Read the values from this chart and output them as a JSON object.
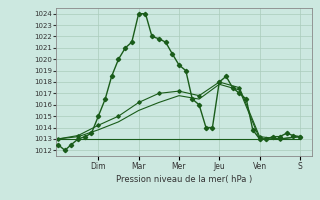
{
  "xlabel": "Pression niveau de la mer( hPa )",
  "bg_color": "#cce8e0",
  "grid_color": "#aaccbb",
  "line_color": "#1a5c1a",
  "ylim": [
    1011.5,
    1024.5
  ],
  "yticks": [
    1012,
    1013,
    1014,
    1015,
    1016,
    1017,
    1018,
    1019,
    1020,
    1021,
    1022,
    1023,
    1024
  ],
  "day_labels": [
    "Dim",
    "Mar",
    "Mer",
    "Jeu",
    "Ven",
    "S"
  ],
  "day_positions": [
    1.0,
    2.0,
    3.0,
    4.0,
    5.0,
    6.0
  ],
  "xlim": [
    -0.05,
    6.3
  ],
  "series1_x": [
    0.0,
    0.17,
    0.33,
    0.5,
    0.67,
    0.83,
    1.0,
    1.17,
    1.33,
    1.5,
    1.67,
    1.83,
    2.0,
    2.17,
    2.33,
    2.5,
    2.67,
    2.83,
    3.0,
    3.17,
    3.33,
    3.5,
    3.67,
    3.83,
    4.0,
    4.17,
    4.33,
    4.5,
    4.67,
    4.83,
    5.0,
    5.17,
    5.33,
    5.5,
    5.67,
    5.83,
    6.0
  ],
  "series1_y": [
    1012.5,
    1012.0,
    1012.5,
    1013.0,
    1013.2,
    1013.5,
    1015.0,
    1016.5,
    1018.5,
    1020.0,
    1021.0,
    1021.5,
    1024.0,
    1024.0,
    1022.0,
    1021.8,
    1021.5,
    1020.5,
    1019.5,
    1019.0,
    1016.5,
    1016.0,
    1014.0,
    1014.0,
    1018.0,
    1018.5,
    1017.5,
    1017.0,
    1016.5,
    1013.8,
    1013.0,
    1013.0,
    1013.2,
    1013.2,
    1013.5,
    1013.3,
    1013.2
  ],
  "series2_x": [
    0.0,
    1.0,
    2.0,
    3.0,
    4.0,
    5.0,
    6.0
  ],
  "series2_y": [
    1013.0,
    1013.0,
    1013.0,
    1013.0,
    1013.0,
    1013.0,
    1013.0
  ],
  "series3_x": [
    0.0,
    0.5,
    1.0,
    1.5,
    2.0,
    2.5,
    3.0,
    3.5,
    4.0,
    4.5,
    5.0,
    5.5,
    6.0
  ],
  "series3_y": [
    1013.0,
    1013.2,
    1013.8,
    1014.5,
    1015.5,
    1016.2,
    1016.8,
    1016.5,
    1017.8,
    1017.3,
    1013.0,
    1013.0,
    1013.2
  ],
  "series4_x": [
    0.0,
    0.5,
    1.0,
    1.5,
    2.0,
    2.5,
    3.0,
    3.5,
    4.0,
    4.5,
    5.0,
    5.5,
    6.0
  ],
  "series4_y": [
    1013.0,
    1013.3,
    1014.2,
    1015.0,
    1016.2,
    1017.0,
    1017.2,
    1016.8,
    1018.0,
    1017.5,
    1013.2,
    1013.0,
    1013.2
  ]
}
